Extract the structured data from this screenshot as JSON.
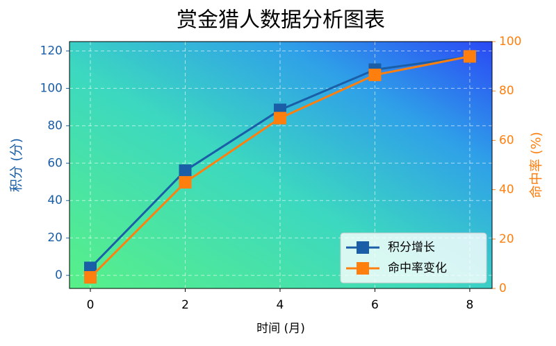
{
  "chart_data": {
    "type": "line",
    "title": "赏金猎人数据分析图表",
    "x_label": "时间 (月)",
    "y_label": "积分 (分)",
    "y2_label": "命中率 (%)",
    "x": [
      0,
      2,
      4,
      6,
      8
    ],
    "series": [
      {
        "name": "积分增长",
        "color": "#1a5ea8",
        "values": [
          4,
          56,
          88.5,
          110,
          117
        ]
      },
      {
        "name": "命中率变化",
        "color": "#ff7f0e",
        "axis": "y2",
        "values": [
          4.5,
          43,
          69,
          86.5,
          94
        ]
      }
    ],
    "xlim": [
      -0.44,
      8.47
    ],
    "xticks": [
      0,
      2,
      4,
      6,
      8
    ],
    "ylim": [
      -7,
      125
    ],
    "yticks": [
      0,
      20,
      40,
      60,
      80,
      100,
      120
    ],
    "y2lim": [
      0,
      100
    ],
    "y2ticks": [
      0,
      20,
      40,
      60,
      80,
      100
    ],
    "grid": true,
    "legend": "lower right"
  }
}
